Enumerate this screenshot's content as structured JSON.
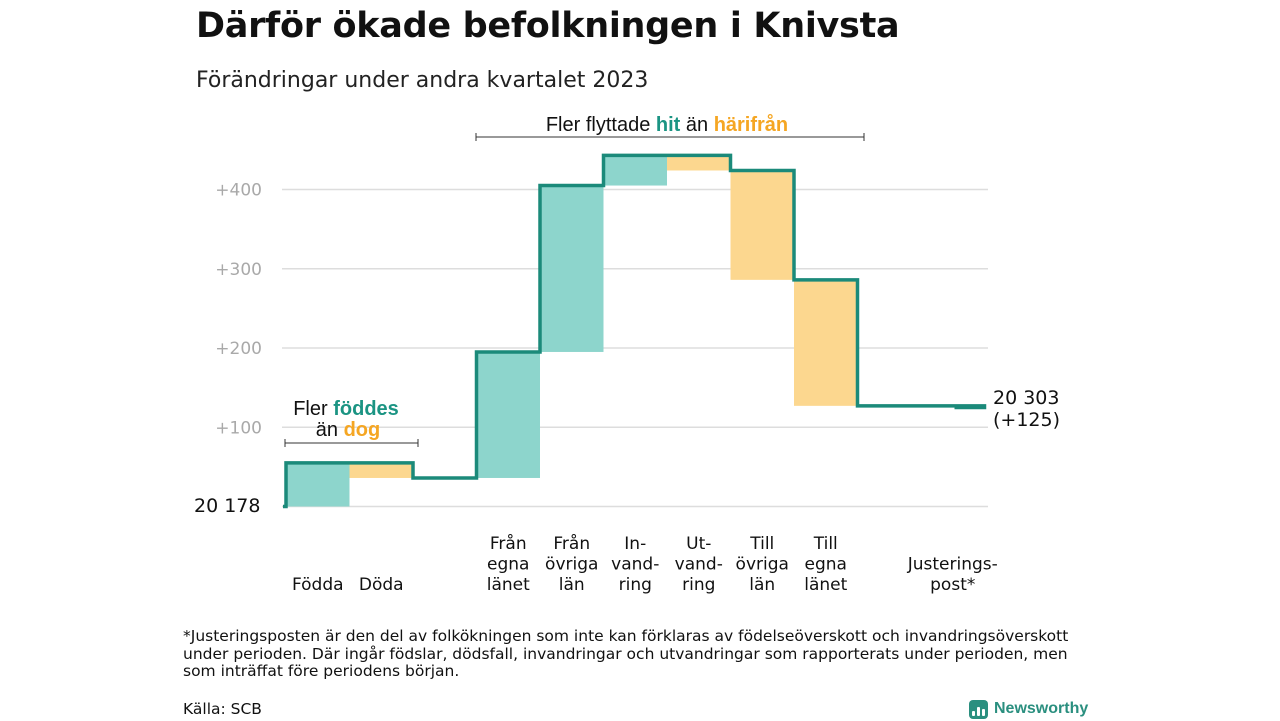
{
  "title": "Därför ökade befolkningen i Knivsta",
  "subtitle": "Förändringar under andra kvartalet 2023",
  "colors": {
    "increase": "#8dd5cc",
    "decrease": "#fcd78f",
    "line": "#1b8a7a",
    "grid": "#dddddd",
    "accent_hit": "#1b9483",
    "accent_dog": "#f5a623"
  },
  "chart_data": {
    "type": "waterfall",
    "baseline_label": "20  178",
    "baseline_population": 20178,
    "end_label_line1": "20 303",
    "end_label_line2": "(+125)",
    "end_population": 20303,
    "end_change": 125,
    "ylim": [
      0,
      440
    ],
    "y_ticks": [
      {
        "value": 100,
        "label": "+100"
      },
      {
        "value": 200,
        "label": "+200"
      },
      {
        "value": 300,
        "label": "+300"
      },
      {
        "value": 400,
        "label": "+400"
      }
    ],
    "steps": [
      {
        "label": [
          "Födda"
        ],
        "start": 0,
        "end": 55,
        "kind": "increase"
      },
      {
        "label": [
          "Döda"
        ],
        "start": 55,
        "end": 36,
        "kind": "decrease"
      },
      {
        "label": [],
        "start": 36,
        "end": 36,
        "kind": "gap"
      },
      {
        "label": [
          "Från",
          "egna",
          "länet"
        ],
        "start": 36,
        "end": 195,
        "kind": "increase"
      },
      {
        "label": [
          "Från",
          "övriga",
          "län"
        ],
        "start": 195,
        "end": 405,
        "kind": "increase"
      },
      {
        "label": [
          "In-",
          "vand-",
          "ring"
        ],
        "start": 405,
        "end": 443,
        "kind": "increase"
      },
      {
        "label": [
          "Ut-",
          "vand-",
          "ring"
        ],
        "start": 443,
        "end": 424,
        "kind": "decrease"
      },
      {
        "label": [
          "Till",
          "övriga",
          "län"
        ],
        "start": 424,
        "end": 286,
        "kind": "decrease"
      },
      {
        "label": [
          "Till",
          "egna",
          "länet"
        ],
        "start": 286,
        "end": 127,
        "kind": "decrease"
      },
      {
        "label": [],
        "start": 127,
        "end": 127,
        "kind": "gap"
      },
      {
        "label": [
          "Justerings-",
          "post*"
        ],
        "start": 127,
        "end": 125,
        "kind": "decrease"
      }
    ],
    "annotations": {
      "births": {
        "line1_prefix": "Fler ",
        "line1_word": "föddes",
        "line2_prefix": "än ",
        "line2_word": "dog"
      },
      "migration": {
        "prefix": "Fler flyttade ",
        "word1": "hit",
        "middle": " än ",
        "word2": "härifrån"
      }
    }
  },
  "footnote": "*Justeringsposten är den del av folkökningen som inte kan förklaras av födelseöverskott och invandringsöverskott under perioden. Där ingår födslar, dödsfall, invandringar och utvandringar som rapporterats under perioden, men som inträffat före periodens början.",
  "source": "Källa: SCB",
  "brand": "Newsworthy"
}
